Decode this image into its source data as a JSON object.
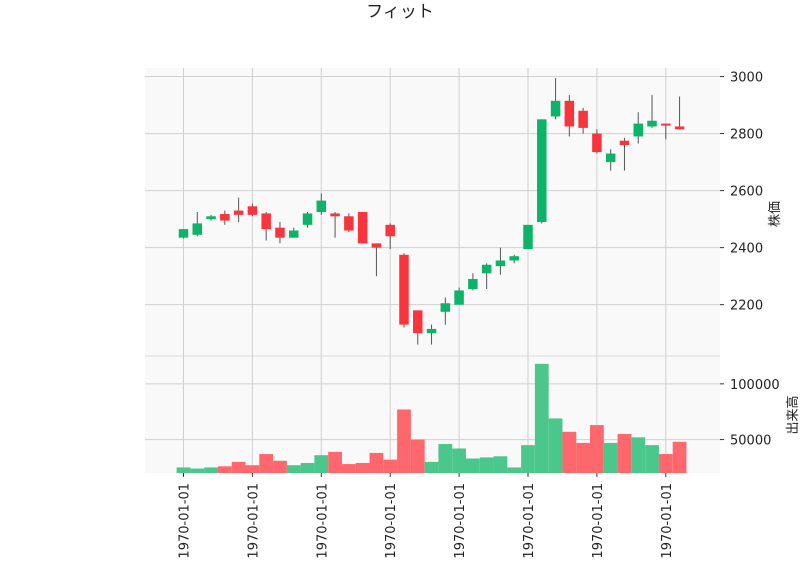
{
  "chart_data": {
    "type": "candlestick",
    "title": "フィット",
    "price_label": "株価",
    "volume_label": "出来高",
    "x_tick_labels": [
      "1970-01-01",
      "1970-01-01",
      "1970-01-01",
      "1970-01-01",
      "1970-01-01",
      "1970-01-01",
      "1970-01-01",
      "1970-01-01"
    ],
    "price_ticks": [
      {
        "value": 2200,
        "label": "2200"
      },
      {
        "value": 2400,
        "label": "2400"
      },
      {
        "value": 2600,
        "label": "2600"
      },
      {
        "value": 2800,
        "label": "2800"
      },
      {
        "value": 3000,
        "label": "3000"
      }
    ],
    "volume_ticks": [
      {
        "value": 50000,
        "label": "50000"
      },
      {
        "value": 100000,
        "label": "100000"
      }
    ],
    "price_range": [
      2020,
      3030
    ],
    "volume_range": [
      20000,
      125000
    ],
    "grid": true,
    "colors": {
      "up": "#0bb468",
      "down": "#f8353d",
      "up_volume": "#4cc78b",
      "down_volume": "#fe676c",
      "wick": "#555555",
      "plot_bg": "#f9f9f9",
      "grid": "#d0d0d0"
    },
    "candles": [
      {
        "open": 2435,
        "high": 2465,
        "low": 2432,
        "close": 2465,
        "volume": 25000
      },
      {
        "open": 2445,
        "high": 2525,
        "low": 2440,
        "close": 2485,
        "volume": 24000
      },
      {
        "open": 2500,
        "high": 2515,
        "low": 2495,
        "close": 2510,
        "volume": 25000
      },
      {
        "open": 2518,
        "high": 2530,
        "low": 2480,
        "close": 2495,
        "volume": 26000
      },
      {
        "open": 2530,
        "high": 2575,
        "low": 2490,
        "close": 2515,
        "volume": 30000
      },
      {
        "open": 2545,
        "high": 2555,
        "low": 2510,
        "close": 2515,
        "volume": 27000
      },
      {
        "open": 2520,
        "high": 2525,
        "low": 2425,
        "close": 2465,
        "volume": 37000
      },
      {
        "open": 2470,
        "high": 2490,
        "low": 2415,
        "close": 2435,
        "volume": 31000
      },
      {
        "open": 2435,
        "high": 2470,
        "low": 2435,
        "close": 2460,
        "volume": 27000
      },
      {
        "open": 2480,
        "high": 2525,
        "low": 2470,
        "close": 2520,
        "volume": 29000
      },
      {
        "open": 2525,
        "high": 2590,
        "low": 2515,
        "close": 2565,
        "volume": 36000
      },
      {
        "open": 2520,
        "high": 2525,
        "low": 2435,
        "close": 2510,
        "volume": 39000
      },
      {
        "open": 2510,
        "high": 2520,
        "low": 2455,
        "close": 2460,
        "volume": 28000
      },
      {
        "open": 2525,
        "high": 2525,
        "low": 2415,
        "close": 2415,
        "volume": 29000
      },
      {
        "open": 2415,
        "high": 2415,
        "low": 2300,
        "close": 2400,
        "volume": 38000
      },
      {
        "open": 2480,
        "high": 2485,
        "low": 2395,
        "close": 2440,
        "volume": 32000
      },
      {
        "open": 2375,
        "high": 2380,
        "low": 2120,
        "close": 2130,
        "volume": 77000
      },
      {
        "open": 2180,
        "high": 2180,
        "low": 2060,
        "close": 2100,
        "volume": 50000
      },
      {
        "open": 2100,
        "high": 2130,
        "low": 2060,
        "close": 2115,
        "volume": 30000
      },
      {
        "open": 2175,
        "high": 2225,
        "low": 2130,
        "close": 2205,
        "volume": 46000
      },
      {
        "open": 2200,
        "high": 2260,
        "low": 2200,
        "close": 2250,
        "volume": 42000
      },
      {
        "open": 2255,
        "high": 2310,
        "low": 2250,
        "close": 2290,
        "volume": 33000
      },
      {
        "open": 2310,
        "high": 2345,
        "low": 2255,
        "close": 2340,
        "volume": 34000
      },
      {
        "open": 2335,
        "high": 2400,
        "low": 2305,
        "close": 2355,
        "volume": 35000
      },
      {
        "open": 2355,
        "high": 2375,
        "low": 2345,
        "close": 2370,
        "volume": 25000
      },
      {
        "open": 2395,
        "high": 2480,
        "low": 2395,
        "close": 2480,
        "volume": 45000
      },
      {
        "open": 2490,
        "high": 2850,
        "low": 2485,
        "close": 2850,
        "volume": 118000
      },
      {
        "open": 2860,
        "high": 2995,
        "low": 2850,
        "close": 2915,
        "volume": 69000
      },
      {
        "open": 2915,
        "high": 2935,
        "low": 2790,
        "close": 2825,
        "volume": 57000
      },
      {
        "open": 2880,
        "high": 2890,
        "low": 2800,
        "close": 2820,
        "volume": 47000
      },
      {
        "open": 2800,
        "high": 2815,
        "low": 2730,
        "close": 2735,
        "volume": 63000
      },
      {
        "open": 2700,
        "high": 2745,
        "low": 2670,
        "close": 2730,
        "volume": 47000
      },
      {
        "open": 2775,
        "high": 2785,
        "low": 2670,
        "close": 2760,
        "volume": 55000
      },
      {
        "open": 2790,
        "high": 2875,
        "low": 2765,
        "close": 2835,
        "volume": 52000
      },
      {
        "open": 2825,
        "high": 2935,
        "low": 2820,
        "close": 2845,
        "volume": 45000
      },
      {
        "open": 2835,
        "high": 2835,
        "low": 2780,
        "close": 2830,
        "volume": 37000
      },
      {
        "open": 2825,
        "high": 2930,
        "low": 2815,
        "close": 2815,
        "volume": 48000
      }
    ]
  }
}
